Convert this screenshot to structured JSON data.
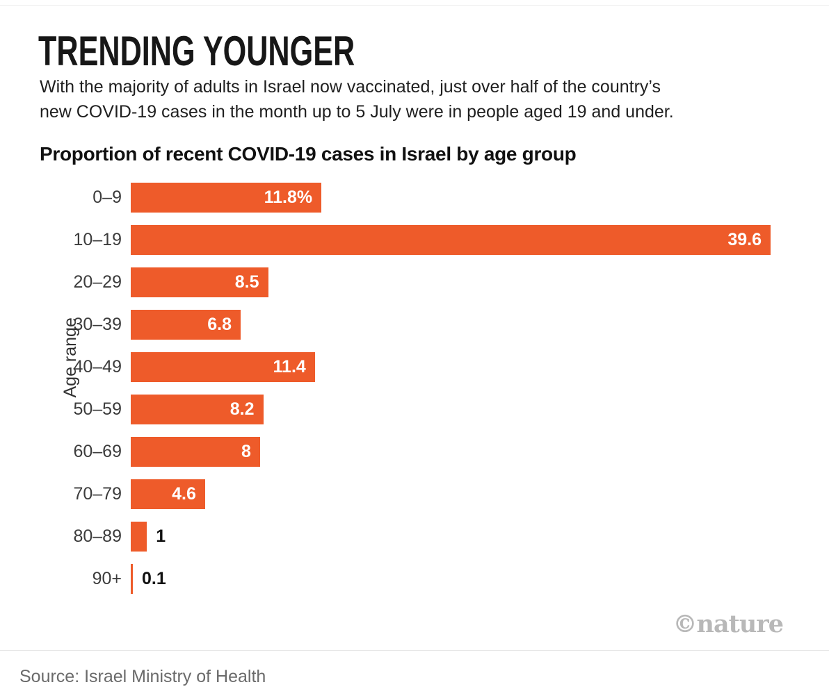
{
  "header": {
    "title": "TRENDING YOUNGER",
    "subtitle_line1": "With the majority of adults in Israel now vaccinated, just over half of the country’s",
    "subtitle_line2": "new COVID-19 cases in the month up to 5 July were in people aged 19 and under."
  },
  "chart_data": {
    "type": "bar",
    "orientation": "horizontal",
    "title": "Proportion of recent COVID-19 cases in Israel by age group",
    "xlabel": "",
    "ylabel": "Age range",
    "xlim": [
      0,
      41
    ],
    "grid": false,
    "bar_color": "#EE5B2A",
    "categories": [
      "0–9",
      "10–19",
      "20–29",
      "30–39",
      "40–49",
      "50–59",
      "60–69",
      "70–79",
      "80–89",
      "90+"
    ],
    "values": [
      11.8,
      39.6,
      8.5,
      6.8,
      11.4,
      8.2,
      8,
      4.6,
      1,
      0.1
    ],
    "value_labels": [
      "11.8%",
      "39.6",
      "8.5",
      "6.8",
      "11.4",
      "8.2",
      "8",
      "4.6",
      "1",
      "0.1"
    ],
    "label_inside": [
      true,
      true,
      true,
      true,
      true,
      true,
      true,
      true,
      false,
      false
    ]
  },
  "footer": {
    "watermark": "©nature",
    "source": "Source: Israel Ministry of Health"
  }
}
